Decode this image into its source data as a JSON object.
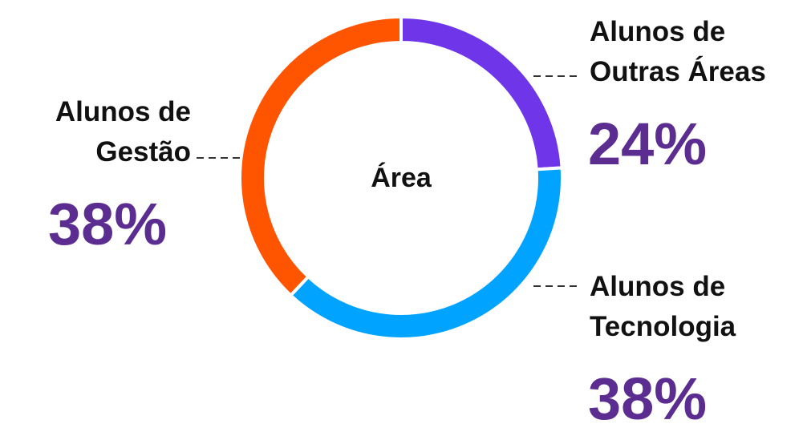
{
  "chart_data": {
    "type": "donut",
    "center_label": "Área",
    "categories": [
      "Alunos de Outras Áreas",
      "Alunos de Tecnologia",
      "Alunos de Gestão"
    ],
    "values": [
      24,
      38,
      38
    ],
    "value_labels": [
      "24%",
      "38%",
      "38%"
    ],
    "colors": [
      "#6f35e8",
      "#00a3ff",
      "#ff5500"
    ]
  }
}
